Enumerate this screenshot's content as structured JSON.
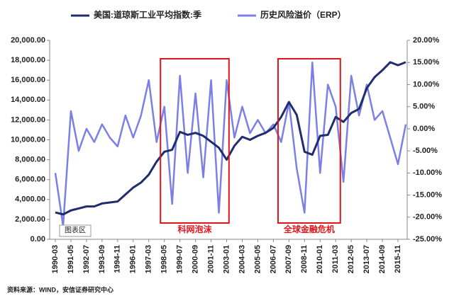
{
  "chart_data": {
    "type": "line",
    "categories": [
      "1990-03",
      null,
      "1991-05",
      null,
      "1992-07",
      null,
      "1993-09",
      null,
      "1994-11",
      null,
      "1996-01",
      null,
      "1997-03",
      null,
      "1998-05",
      null,
      "1999-07",
      null,
      "2000-09",
      null,
      "2001-11",
      null,
      "2003-01",
      null,
      "2004-03",
      null,
      "2005-05",
      null,
      "2006-07",
      null,
      "2007-09",
      null,
      "2008-11",
      null,
      "2010-01",
      null,
      "2011-03",
      null,
      "2012-05",
      null,
      "2013-07",
      null,
      "2014-09",
      null,
      "2015-11",
      null
    ],
    "series": [
      {
        "name": "美国:道琼斯工业平均指数:季",
        "color": "#1f2d6e",
        "values": [
          2700,
          2500,
          2900,
          3100,
          3300,
          3300,
          3600,
          3700,
          3800,
          4500,
          5200,
          5700,
          6500,
          7800,
          8800,
          9000,
          10800,
          10500,
          10700,
          10400,
          9800,
          9200,
          8000,
          9400,
          10300,
          10000,
          10400,
          10700,
          11200,
          12300,
          13800,
          12500,
          8800,
          8500,
          10400,
          10500,
          12300,
          11800,
          12700,
          13100,
          15200,
          16300,
          17000,
          17800,
          17500,
          17800
        ]
      },
      {
        "name": "历史风险溢价（ERP）",
        "color": "#7b7fe8",
        "axis": "y2",
        "values": [
          -10,
          -22,
          4,
          -5,
          0,
          -3,
          1,
          -2,
          -4,
          3,
          -2,
          3,
          11,
          -3,
          5,
          -17,
          12,
          -10,
          8,
          -11,
          11,
          -19,
          11,
          -2,
          5,
          -1,
          2,
          -1,
          1,
          -3,
          6,
          -9,
          -19,
          15,
          -10,
          10,
          5,
          -12,
          12,
          3,
          10,
          2,
          4,
          -2,
          -8,
          1
        ]
      }
    ],
    "ylim": [
      0,
      20000
    ],
    "yticks": [
      {
        "value": 0,
        "label": "0.00"
      },
      {
        "value": 2000,
        "label": "2,000.00"
      },
      {
        "value": 4000,
        "label": "4,000.00"
      },
      {
        "value": 6000,
        "label": "6,000.00"
      },
      {
        "value": 8000,
        "label": "8,000.00"
      },
      {
        "value": 10000,
        "label": "10,000.00"
      },
      {
        "value": 12000,
        "label": "12,000.00"
      },
      {
        "value": 14000,
        "label": "14,000.00"
      },
      {
        "value": 16000,
        "label": "16,000.00"
      },
      {
        "value": 18000,
        "label": "18,000.00"
      },
      {
        "value": 20000,
        "label": "20,000.00"
      }
    ],
    "y2lim": [
      -25,
      20
    ],
    "y2ticks": [
      {
        "value": -25,
        "label": "-25.00%"
      },
      {
        "value": -20,
        "label": "-20.00%"
      },
      {
        "value": -15,
        "label": "-15.00%"
      },
      {
        "value": -10,
        "label": "-10.00%"
      },
      {
        "value": -5,
        "label": "-5.00%"
      },
      {
        "value": 0,
        "label": "0.00%"
      },
      {
        "value": 5,
        "label": "5.00%"
      },
      {
        "value": 10,
        "label": "10.00%"
      },
      {
        "value": 15,
        "label": "15.00%"
      },
      {
        "value": 20,
        "label": "20.00%"
      }
    ],
    "annotations": [
      "科网泡沫",
      "全球金融危机",
      "图表区"
    ],
    "source": "资料来源：WIND，安信证券研究中心"
  }
}
